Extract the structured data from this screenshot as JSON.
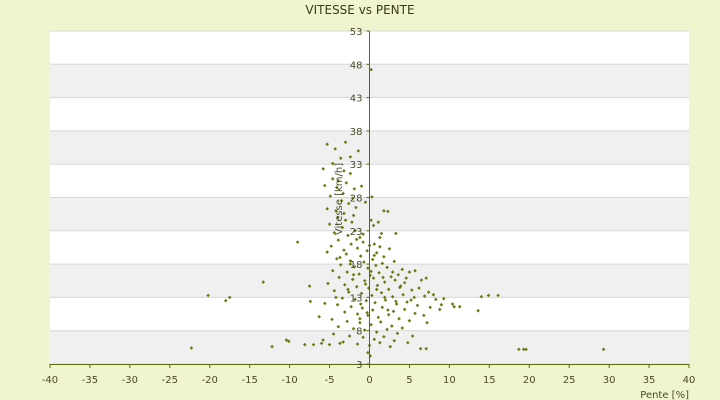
{
  "chart_data": {
    "type": "scatter",
    "title": "VITESSE vs PENTE",
    "xlabel": "Pente [%]",
    "ylabel": "Vitesse [km/h]",
    "xlim": [
      -40,
      40
    ],
    "ylim": [
      3,
      53
    ],
    "xticks": [
      "-40",
      "-35",
      "-30",
      "-25",
      "-20",
      "-15",
      "-10",
      "-5",
      "0",
      "5",
      "10",
      "15",
      "20",
      "25",
      "30",
      "35",
      "40"
    ],
    "yticks": [
      "3",
      "8",
      "13",
      "18",
      "23",
      "28",
      "33",
      "38",
      "43",
      "48",
      "53"
    ],
    "grid": "horizontal alternating bands",
    "legend": "none",
    "colors": {
      "background": "#f0f5cf",
      "plot_band_light": "#ffffff",
      "plot_band_dark": "#f0f0f0",
      "gridline": "#d8d8d8",
      "axis": "#5a6a10",
      "marker": "#6b7a12"
    },
    "series": [
      {
        "points": [
          [
            0.2,
            47.2
          ],
          [
            -22.3,
            5.4
          ],
          [
            -20.2,
            13.3
          ],
          [
            -18.0,
            12.5
          ],
          [
            -17.5,
            13.0
          ],
          [
            -13.3,
            15.3
          ],
          [
            -12.2,
            5.6
          ],
          [
            -10.4,
            6.6
          ],
          [
            -10.1,
            6.4
          ],
          [
            -9.0,
            21.3
          ],
          [
            -8.1,
            5.9
          ],
          [
            -7.5,
            14.7
          ],
          [
            -7.4,
            12.4
          ],
          [
            -7.0,
            5.9
          ],
          [
            -6.0,
            6.1
          ],
          [
            -5.0,
            5.9
          ],
          [
            -3.7,
            6.1
          ],
          [
            13.6,
            11.0
          ],
          [
            14.0,
            13.1
          ],
          [
            14.9,
            13.3
          ],
          [
            16.1,
            13.3
          ],
          [
            18.7,
            5.2
          ],
          [
            19.3,
            5.2
          ],
          [
            19.6,
            5.2
          ],
          [
            29.3,
            5.2
          ],
          [
            -5.3,
            36.0
          ],
          [
            -4.3,
            35.3
          ],
          [
            -3.0,
            36.3
          ],
          [
            -2.4,
            34.1
          ],
          [
            -1.4,
            35.0
          ],
          [
            -4.6,
            33.1
          ],
          [
            -3.6,
            33.9
          ],
          [
            -5.8,
            32.3
          ],
          [
            -3.2,
            32.0
          ],
          [
            -2.4,
            31.6
          ],
          [
            -4.6,
            30.8
          ],
          [
            -3.9,
            30.5
          ],
          [
            -5.6,
            29.8
          ],
          [
            -4.1,
            29.5
          ],
          [
            -2.9,
            30.2
          ],
          [
            -1.9,
            29.3
          ],
          [
            -3.3,
            28.6
          ],
          [
            -4.9,
            28.2
          ],
          [
            -2.1,
            27.9
          ],
          [
            -3.5,
            27.5
          ],
          [
            -2.6,
            27.1
          ],
          [
            -5.3,
            26.3
          ],
          [
            -4.2,
            26.0
          ],
          [
            -1.7,
            26.5
          ],
          [
            -3.2,
            25.6
          ],
          [
            -2.0,
            25.3
          ],
          [
            -4.0,
            25.0
          ],
          [
            -3.0,
            24.6
          ],
          [
            -2.2,
            24.3
          ],
          [
            -5.0,
            24.0
          ],
          [
            2.3,
            25.9
          ],
          [
            1.1,
            24.3
          ],
          [
            1.5,
            22.6
          ],
          [
            3.3,
            22.6
          ],
          [
            0.5,
            23.8
          ],
          [
            0.2,
            24.6
          ],
          [
            1.8,
            26.0
          ],
          [
            -0.5,
            27.3
          ],
          [
            0.3,
            28.1
          ],
          [
            -1.0,
            29.7
          ],
          [
            -3.4,
            23.5
          ],
          [
            -1.8,
            23.0
          ],
          [
            -4.4,
            22.7
          ],
          [
            -2.7,
            22.3
          ],
          [
            -1.2,
            22.0
          ],
          [
            -3.9,
            21.6
          ],
          [
            -0.8,
            21.3
          ],
          [
            -2.3,
            21.0
          ],
          [
            -4.8,
            20.7
          ],
          [
            -1.5,
            20.4
          ],
          [
            -3.2,
            20.1
          ],
          [
            0.6,
            21.0
          ],
          [
            1.3,
            20.6
          ],
          [
            2.5,
            20.3
          ],
          [
            -0.3,
            20.0
          ],
          [
            -5.3,
            19.8
          ],
          [
            -2.9,
            19.5
          ],
          [
            -1.1,
            19.2
          ],
          [
            0.9,
            19.7
          ],
          [
            1.8,
            19.1
          ],
          [
            -4.1,
            18.8
          ],
          [
            -2.4,
            18.5
          ],
          [
            -0.7,
            18.3
          ],
          [
            0.4,
            18.7
          ],
          [
            1.6,
            18.1
          ],
          [
            3.1,
            18.4
          ],
          [
            -3.6,
            17.9
          ],
          [
            -1.9,
            17.6
          ],
          [
            -0.2,
            17.4
          ],
          [
            0.8,
            17.8
          ],
          [
            2.2,
            17.5
          ],
          [
            4.1,
            17.2
          ],
          [
            5.0,
            16.8
          ],
          [
            5.7,
            17.0
          ],
          [
            -4.6,
            17.0
          ],
          [
            -2.8,
            16.8
          ],
          [
            -1.3,
            16.5
          ],
          [
            0.1,
            16.3
          ],
          [
            1.2,
            16.7
          ],
          [
            2.7,
            16.1
          ],
          [
            3.6,
            16.4
          ],
          [
            6.5,
            15.6
          ],
          [
            7.1,
            15.9
          ],
          [
            -3.8,
            16.0
          ],
          [
            -2.1,
            15.7
          ],
          [
            -0.6,
            15.5
          ],
          [
            0.5,
            15.9
          ],
          [
            1.9,
            15.3
          ],
          [
            3.2,
            15.6
          ],
          [
            4.4,
            15.2
          ],
          [
            -5.2,
            15.1
          ],
          [
            -3.1,
            14.9
          ],
          [
            -1.6,
            14.6
          ],
          [
            -0.1,
            14.4
          ],
          [
            1.0,
            14.8
          ],
          [
            2.4,
            14.2
          ],
          [
            3.8,
            14.5
          ],
          [
            5.3,
            14.1
          ],
          [
            6.2,
            14.4
          ],
          [
            7.4,
            13.8
          ],
          [
            -4.4,
            14.0
          ],
          [
            -2.6,
            13.8
          ],
          [
            -1.0,
            13.6
          ],
          [
            0.3,
            13.3
          ],
          [
            1.5,
            13.7
          ],
          [
            2.9,
            13.1
          ],
          [
            4.2,
            13.4
          ],
          [
            5.6,
            13.0
          ],
          [
            6.9,
            13.2
          ],
          [
            8.3,
            12.7
          ],
          [
            9.3,
            12.8
          ],
          [
            10.4,
            12.0
          ],
          [
            11.3,
            11.6
          ],
          [
            -3.4,
            12.9
          ],
          [
            -1.8,
            12.7
          ],
          [
            -0.4,
            12.5
          ],
          [
            0.7,
            12.2
          ],
          [
            2.0,
            12.6
          ],
          [
            3.4,
            12.0
          ],
          [
            4.7,
            12.3
          ],
          [
            6.0,
            11.8
          ],
          [
            7.6,
            11.5
          ],
          [
            8.8,
            11.2
          ],
          [
            -5.6,
            12.1
          ],
          [
            -4.0,
            11.9
          ],
          [
            -2.3,
            11.6
          ],
          [
            -0.9,
            11.4
          ],
          [
            0.4,
            11.1
          ],
          [
            1.6,
            11.5
          ],
          [
            3.0,
            10.9
          ],
          [
            4.4,
            11.2
          ],
          [
            5.7,
            10.6
          ],
          [
            6.8,
            10.3
          ],
          [
            -3.1,
            10.8
          ],
          [
            -1.5,
            10.5
          ],
          [
            -0.2,
            10.3
          ],
          [
            1.1,
            10.0
          ],
          [
            2.4,
            10.4
          ],
          [
            3.7,
            9.8
          ],
          [
            5.0,
            9.5
          ],
          [
            7.2,
            9.2
          ],
          [
            -6.3,
            10.1
          ],
          [
            -4.7,
            9.7
          ],
          [
            -2.8,
            9.4
          ],
          [
            -1.2,
            9.2
          ],
          [
            0.2,
            8.9
          ],
          [
            1.4,
            9.3
          ],
          [
            2.8,
            8.7
          ],
          [
            4.1,
            8.4
          ],
          [
            -3.9,
            8.6
          ],
          [
            -2.0,
            8.3
          ],
          [
            -0.6,
            8.1
          ],
          [
            0.9,
            7.8
          ],
          [
            2.2,
            8.2
          ],
          [
            3.5,
            7.6
          ],
          [
            5.4,
            7.2
          ],
          [
            -4.5,
            7.5
          ],
          [
            -2.5,
            7.2
          ],
          [
            -0.8,
            7.0
          ],
          [
            0.6,
            6.7
          ],
          [
            1.8,
            7.1
          ],
          [
            3.1,
            6.5
          ],
          [
            4.8,
            6.2
          ],
          [
            -5.8,
            6.6
          ],
          [
            -3.3,
            6.3
          ],
          [
            -1.5,
            6.0
          ],
          [
            0.0,
            5.8
          ],
          [
            1.3,
            6.2
          ],
          [
            2.6,
            5.6
          ],
          [
            -0.2,
            4.7
          ],
          [
            0.1,
            4.2
          ],
          [
            6.4,
            5.3
          ],
          [
            7.1,
            5.3
          ],
          [
            -1.2,
            9.8
          ],
          [
            -0.5,
            15.0
          ],
          [
            0.2,
            16.9
          ],
          [
            1.7,
            16.0
          ],
          [
            -2.4,
            18.0
          ],
          [
            0.9,
            14.2
          ],
          [
            1.9,
            13.0
          ],
          [
            -1.1,
            12.0
          ],
          [
            2.3,
            11.1
          ],
          [
            -0.3,
            10.7
          ],
          [
            3.9,
            14.7
          ],
          [
            -2.7,
            14.2
          ],
          [
            0.6,
            19.3
          ],
          [
            -1.6,
            21.7
          ],
          [
            2.9,
            16.8
          ],
          [
            4.6,
            15.9
          ],
          [
            -0.8,
            22.5
          ],
          [
            0.0,
            20.8
          ],
          [
            1.3,
            22.0
          ],
          [
            -3.7,
            19.0
          ],
          [
            -2.0,
            16.4
          ],
          [
            3.3,
            12.4
          ],
          [
            5.2,
            12.6
          ],
          [
            -4.2,
            13.0
          ],
          [
            8.0,
            13.4
          ],
          [
            9.0,
            11.9
          ],
          [
            10.6,
            11.6
          ]
        ]
      }
    ]
  }
}
